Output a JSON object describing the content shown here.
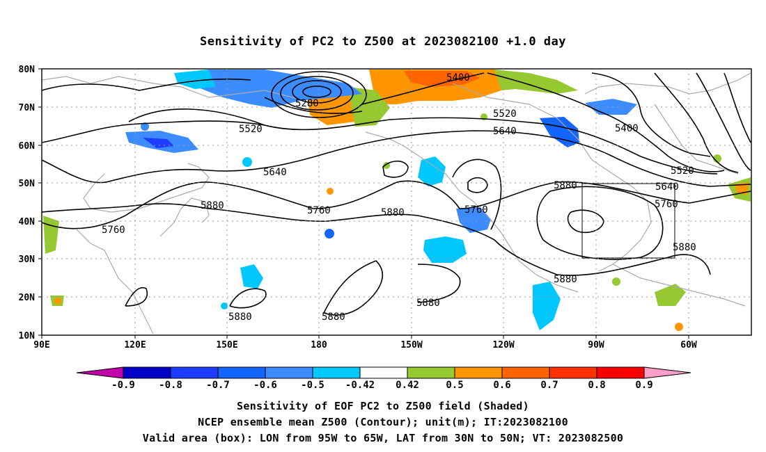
{
  "title": "Sensitivity of PC2 to Z500 at 2023082100 +1.0 day",
  "lat_labels": [
    "80N",
    "70N",
    "60N",
    "50N",
    "40N",
    "30N",
    "20N",
    "10N"
  ],
  "lon_labels": [
    "90E",
    "120E",
    "150E",
    "180",
    "150W",
    "120W",
    "90W",
    "60W"
  ],
  "contour_labels": [
    "5400",
    "5280",
    "5520",
    "5520",
    "5640",
    "5640",
    "5400",
    "5520",
    "5640",
    "5880",
    "5760",
    "5760",
    "5880",
    "5880",
    "5760",
    "5760",
    "5880",
    "5880",
    "5880",
    "5880"
  ],
  "colorbar": {
    "labels": [
      "-0.9",
      "-0.8",
      "-0.7",
      "-0.6",
      "-0.5",
      "-0.42",
      "0.42",
      "0.5",
      "0.6",
      "0.7",
      "0.8",
      "0.9"
    ],
    "colors": [
      "#c000a8",
      "#0000c8",
      "#1e3cff",
      "#1464ff",
      "#3c8cff",
      "#00c8ff",
      "#ffffff",
      "#96c832",
      "#ff9600",
      "#ff6400",
      "#ff3200",
      "#ff0000",
      "#ffa0c8"
    ]
  },
  "footer": {
    "line1": "Sensitivity of EOF PC2 to Z500 field (Shaded)",
    "line2": "NCEP ensemble mean Z500 (Contour); unit(m); IT:2023082100",
    "line3": "Valid area (box): LON from 95W to 65W, LAT from 30N to 50N; VT: 2023082500"
  }
}
